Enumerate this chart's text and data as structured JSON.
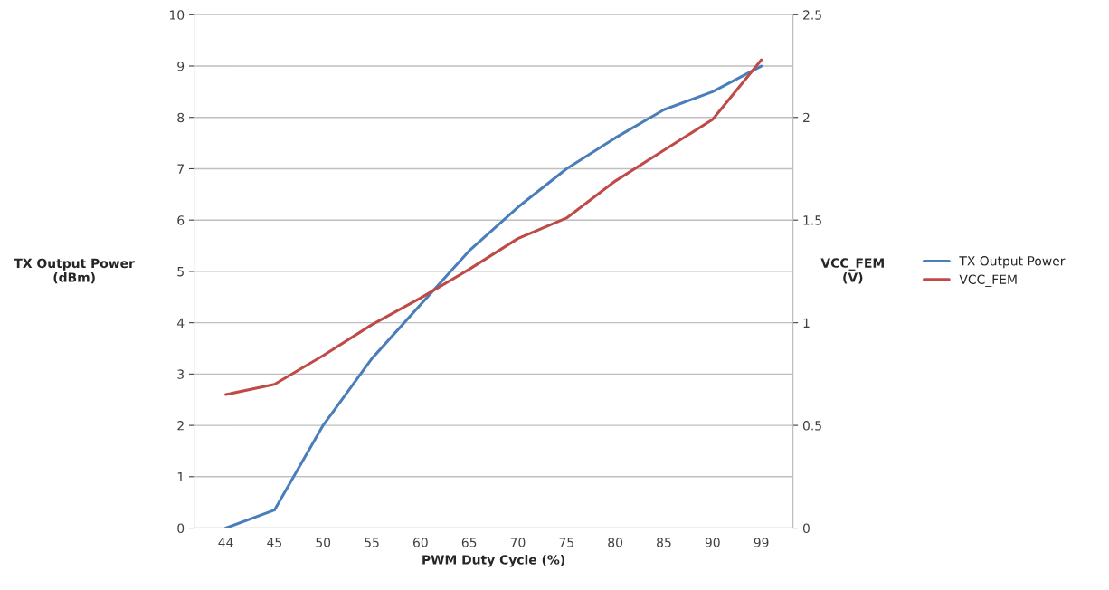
{
  "chart_data": {
    "type": "line",
    "xlabel": "PWM Duty Cycle (%)",
    "ylabel": "TX Output Power\n(dBm)",
    "y2label": "VCC_FEM\n(V)",
    "categories": [
      "44",
      "45",
      "50",
      "55",
      "60",
      "65",
      "70",
      "75",
      "80",
      "85",
      "90",
      "99"
    ],
    "series": [
      {
        "name": "TX Output Power",
        "color": "#4a7ebb",
        "values": [
          0,
          0.35,
          2.0,
          3.3,
          4.35,
          5.4,
          6.25,
          7.0,
          7.6,
          8.15,
          8.5,
          9.0
        ]
      },
      {
        "name": "VCC_FEM",
        "color": "#be4b48",
        "axis": "y2",
        "values": [
          0.65,
          0.7,
          0.84,
          0.99,
          1.12,
          1.26,
          1.41,
          1.51,
          1.69,
          1.84,
          1.99,
          2.28
        ]
      }
    ],
    "ylim": [
      0,
      10
    ],
    "yticks": [
      0,
      1,
      2,
      3,
      4,
      5,
      6,
      7,
      8,
      9,
      10
    ],
    "y2lim": [
      0,
      2.5
    ],
    "y2ticks": [
      0,
      0.5,
      1,
      1.5,
      2,
      2.5
    ],
    "grid": "y",
    "legend": "right",
    "marker": "none",
    "line_style": "solid"
  }
}
